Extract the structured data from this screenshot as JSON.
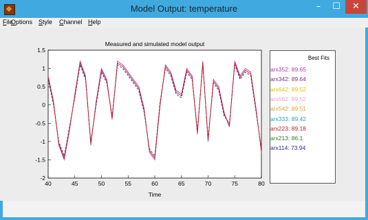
{
  "window": {
    "title": "Model Output: temperature",
    "min_glyph": "–",
    "max_glyph": "☐",
    "close_glyph": "✕"
  },
  "menu": [
    {
      "label": "File"
    },
    {
      "label": "Options"
    },
    {
      "label": "Style"
    },
    {
      "label": "Channel"
    },
    {
      "label": "Help"
    }
  ],
  "plot": {
    "title": "Measured and simulated model output",
    "xlabel": "Time",
    "x_ticks": [
      "40",
      "45",
      "50",
      "55",
      "60",
      "65",
      "70",
      "75",
      "80"
    ],
    "y_ticks": [
      "1.5",
      "1",
      "0.5",
      "0",
      "-0.5",
      "-1",
      "-1.5",
      "-2"
    ]
  },
  "legend": {
    "title": "Best Fits",
    "entries": [
      {
        "label": "arx352: 89.65",
        "color": "#b23aa8"
      },
      {
        "label": "arx342: 89.64",
        "color": "#8a2a8a"
      },
      {
        "label": "arx642: 89.52",
        "color": "#e2c300"
      },
      {
        "label": "arx662: 89.52",
        "color": "#f0a0c8"
      },
      {
        "label": "arx542: 89.51",
        "color": "#e0a030"
      },
      {
        "label": "arx333: 89.42",
        "color": "#2aa0b0"
      },
      {
        "label": "arx223: 89.18",
        "color": "#c02020"
      },
      {
        "label": "arx213: 86.1",
        "color": "#2a7a2a"
      },
      {
        "label": "arx114: 73.94",
        "color": "#2a2a8a"
      }
    ]
  },
  "chart_data": {
    "type": "line",
    "title": "Measured and simulated model output",
    "xlabel": "Time",
    "ylabel": "",
    "xlim": [
      40,
      80
    ],
    "ylim": [
      -2,
      1.5
    ],
    "grid": false,
    "legend_placement": "right",
    "x": [
      40,
      41,
      42,
      43,
      44,
      45,
      46,
      47,
      48,
      49,
      50,
      51,
      52,
      53,
      54,
      55,
      56,
      57,
      58,
      59,
      60,
      61,
      62,
      63,
      64,
      65,
      66,
      67,
      68,
      69,
      70,
      71,
      72,
      73,
      74,
      75,
      76,
      77,
      78,
      79,
      80
    ],
    "series": [
      {
        "name": "arx352: 89.65",
        "color": "#b23aa8",
        "values": [
          0.8,
          0.1,
          -1.1,
          -1.5,
          -0.7,
          0.3,
          1.2,
          0.8,
          -1.1,
          0.1,
          1.0,
          0.7,
          -0.4,
          1.2,
          1.1,
          0.9,
          0.7,
          0.5,
          -0.1,
          -1.3,
          -1.5,
          0.0,
          1.1,
          0.9,
          0.4,
          0.3,
          1.0,
          0.8,
          -0.8,
          1.2,
          -1.0,
          0.7,
          0.5,
          -0.2,
          -0.6,
          1.2,
          0.8,
          1.0,
          0.9,
          -0.1,
          -1.3
        ]
      },
      {
        "name": "arx114: 73.94",
        "color": "#2a2a8a",
        "values": [
          0.7,
          0.0,
          -1.0,
          -1.4,
          -0.6,
          0.2,
          1.1,
          0.7,
          -1.0,
          0.0,
          0.9,
          0.6,
          -0.3,
          1.1,
          1.0,
          0.8,
          0.6,
          0.4,
          -0.2,
          -1.2,
          -1.4,
          0.1,
          1.0,
          0.8,
          0.3,
          0.2,
          0.9,
          0.7,
          -0.7,
          1.1,
          -0.9,
          0.6,
          0.4,
          -0.3,
          -0.5,
          1.1,
          0.7,
          0.9,
          0.8,
          -0.2,
          -1.2
        ]
      },
      {
        "name": "arx223: 89.18",
        "color": "#c02020",
        "values": [
          0.75,
          0.05,
          -1.05,
          -1.45,
          -0.65,
          0.25,
          1.15,
          0.75,
          -1.05,
          0.05,
          0.95,
          0.65,
          -0.35,
          1.15,
          1.05,
          0.85,
          0.65,
          0.45,
          -0.15,
          -1.25,
          -1.45,
          0.05,
          1.05,
          0.85,
          0.35,
          0.25,
          0.95,
          0.75,
          -0.75,
          1.15,
          -0.95,
          0.65,
          0.45,
          -0.25,
          -0.55,
          1.15,
          0.75,
          0.95,
          0.85,
          -0.15,
          -1.25
        ]
      }
    ]
  }
}
